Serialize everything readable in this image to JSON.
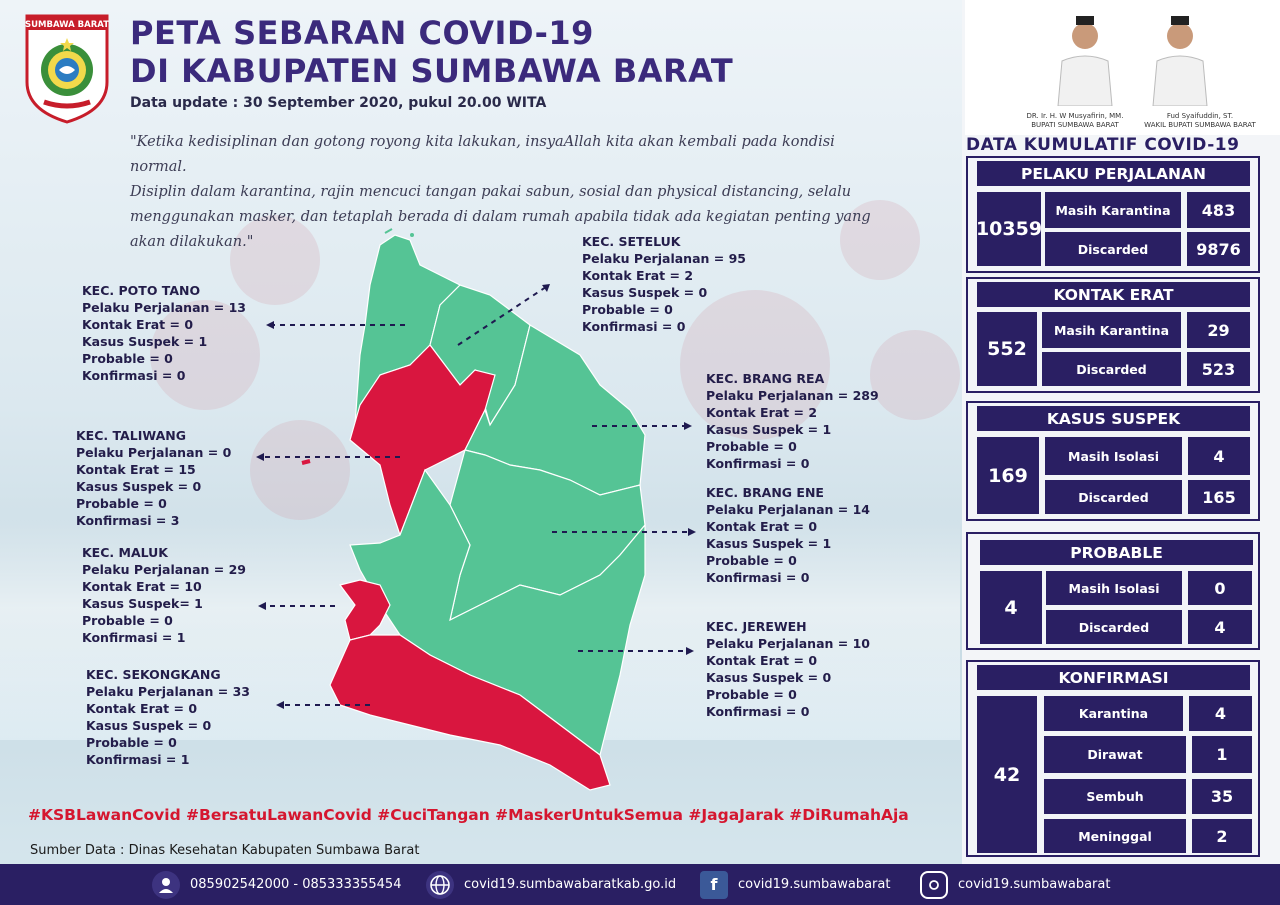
{
  "header": {
    "logo_text": "SUMBAWA BARAT",
    "title_line1": "PETA SEBARAN COVID-19",
    "title_line2": "DI KABUPATEN SUMBAWA BARAT",
    "update": "Data update : 30 September 2020, pukul 20.00 WITA",
    "quote_lines": [
      "\"Ketika kedisiplinan dan gotong royong kita lakukan, insyaAllah kita akan kembali pada kondisi normal.",
      "Disiplin dalam karantina, rajin mencuci tangan pakai sabun, sosial dan physical distancing, selalu",
      "menggunakan masker, dan tetaplah berada di dalam rumah apabila tidak ada kegiatan penting yang",
      "akan dilakukan.\""
    ]
  },
  "officials": {
    "bupati_name": "DR. Ir. H. W Musyafirin, MM.",
    "bupati_title": "BUPATI SUMBAWA BARAT",
    "wakil_name": "Fud Syaifuddin, ST.",
    "wakil_title": "WAKIL BUPATI SUMBAWA BARAT"
  },
  "districts": [
    {
      "name": "KEC. POTO TANO",
      "lines": [
        "Pelaku Perjalanan = 13",
        "Kontak Erat = 0",
        "Kasus Suspek = 1",
        "Probable = 0",
        "Konfirmasi = 0"
      ]
    },
    {
      "name": "KEC. TALIWANG",
      "lines": [
        "Pelaku Perjalanan = 0",
        "Kontak Erat = 15",
        "Kasus Suspek = 0",
        "Probable = 0",
        "Konfirmasi = 3"
      ]
    },
    {
      "name": "KEC. MALUK",
      "lines": [
        "Pelaku Perjalanan = 29",
        "Kontak Erat = 10",
        "Kasus Suspek= 1",
        "Probable = 0",
        "Konfirmasi = 1"
      ]
    },
    {
      "name": "KEC. SEKONGKANG",
      "lines": [
        "Pelaku Perjalanan = 33",
        "Kontak Erat = 0",
        "Kasus Suspek = 0",
        "Probable = 0",
        "Konfirmasi = 1"
      ]
    },
    {
      "name": "KEC. SETELUK",
      "lines": [
        "Pelaku Perjalanan = 95",
        "Kontak Erat = 2",
        "Kasus Suspek = 0",
        "Probable = 0",
        "Konfirmasi = 0"
      ]
    },
    {
      "name": "KEC. BRANG REA",
      "lines": [
        "Pelaku Perjalanan = 289",
        "Kontak Erat = 2",
        "Kasus Suspek = 1",
        "Probable = 0",
        "Konfirmasi = 0"
      ]
    },
    {
      "name": "KEC. BRANG ENE",
      "lines": [
        "Pelaku Perjalanan = 14",
        "Kontak Erat = 0",
        "Kasus Suspek = 1",
        "Probable = 0",
        "Konfirmasi = 0"
      ]
    },
    {
      "name": "KEC. JEREWEH",
      "lines": [
        "Pelaku Perjalanan = 10",
        "Kontak Erat = 0",
        "Kasus Suspek = 0",
        "Probable = 0",
        "Konfirmasi = 0"
      ]
    }
  ],
  "colors": {
    "green_area": "#55c495",
    "red_area": "#d9163f",
    "navy": "#2a1f63",
    "hashtag": "#d5162f"
  },
  "hashtags": "#KSBLawanCovid #BersatuLawanCovid #CuciTangan #MaskerUntukSemua #JagaJarak #DiRumahAja",
  "source": "Sumber Data : Dinas Kesehatan Kabupaten Sumbawa Barat",
  "footer": {
    "phone": "085902542000 - 085333355454",
    "website": "covid19.sumbawabaratkab.go.id",
    "facebook": "covid19.sumbawabarat",
    "instagram": "covid19.sumbawabarat",
    "icons": [
      "headset-icon",
      "globe-icon",
      "facebook-icon",
      "instagram-icon"
    ]
  },
  "kumulatif": {
    "title": "DATA KUMULATIF COVID-19",
    "pelaku": {
      "head": "PELAKU PERJALANAN",
      "total": "10359",
      "l1": "Masih Karantina",
      "v1": "483",
      "l2": "Discarded",
      "v2": "9876"
    },
    "kontak": {
      "head": "KONTAK ERAT",
      "total": "552",
      "l1": "Masih Karantina",
      "v1": "29",
      "l2": "Discarded",
      "v2": "523"
    },
    "suspek": {
      "head": "KASUS SUSPEK",
      "total": "169",
      "l1": "Masih Isolasi",
      "v1": "4",
      "l2": "Discarded",
      "v2": "165"
    },
    "probable": {
      "head": "PROBABLE",
      "total": "4",
      "l1": "Masih Isolasi",
      "v1": "0",
      "l2": "Discarded",
      "v2": "4"
    },
    "konfirmasi": {
      "head": "KONFIRMASI",
      "total": "42",
      "l1": "Karantina",
      "v1": "4",
      "l2": "Dirawat",
      "v2": "1",
      "l3": "Sembuh",
      "v3": "35",
      "l4": "Meninggal",
      "v4": "2"
    }
  }
}
